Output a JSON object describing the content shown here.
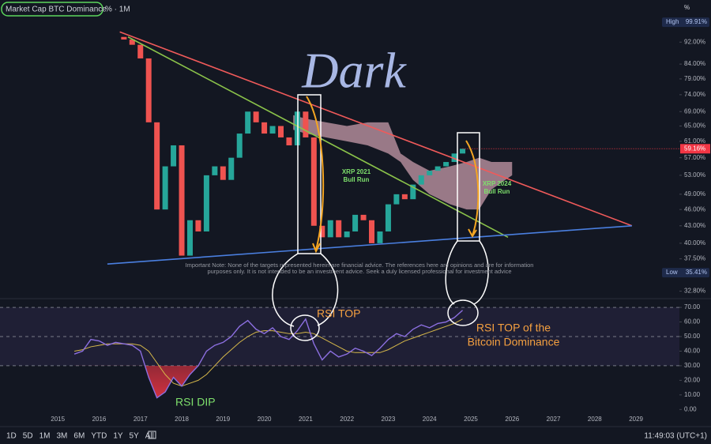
{
  "header": {
    "symbol": "Market Cap BTC Dominance",
    "interval": "% · 1M"
  },
  "chart_data": [
    {
      "type": "candlestick",
      "unit_label": "%",
      "log_scale": true,
      "grid": false,
      "up_color": "#26a69a",
      "down_color": "#ef5350",
      "xlim": [
        2013.6,
        2030.05
      ],
      "xticks": [
        2015,
        2016,
        2017,
        2018,
        2019,
        2020,
        2021,
        2022,
        2023,
        2024,
        2025,
        2026,
        2027,
        2028,
        2029
      ],
      "ylim": [
        31.8,
        102.6
      ],
      "yticks": [
        {
          "value": 92,
          "label": "92.00%"
        },
        {
          "value": 84,
          "label": "84.00%"
        },
        {
          "value": 79,
          "label": "79.00%"
        },
        {
          "value": 74,
          "label": "74.00%"
        },
        {
          "value": 69,
          "label": "69.00%"
        },
        {
          "value": 65,
          "label": "65.00%"
        },
        {
          "value": 61,
          "label": "61.00%"
        },
        {
          "value": 57,
          "label": "57.00%"
        },
        {
          "value": 53,
          "label": "53.00%"
        },
        {
          "value": 49,
          "label": "49.00%"
        },
        {
          "value": 46,
          "label": "46.00%"
        },
        {
          "value": 43,
          "label": "43.00%"
        },
        {
          "value": 40,
          "label": "40.00%"
        },
        {
          "value": 37.5,
          "label": "37.50%"
        },
        {
          "value": 32.8,
          "label": "32.80%"
        }
      ],
      "x": [
        2016.6,
        2016.8,
        2017.0,
        2017.2,
        2017.4,
        2017.6,
        2017.8,
        2018.0,
        2018.2,
        2018.4,
        2018.6,
        2018.8,
        2019.0,
        2019.2,
        2019.4,
        2019.6,
        2019.8,
        2020.0,
        2020.2,
        2020.4,
        2020.6,
        2020.8,
        2021.0,
        2021.2,
        2021.4,
        2021.6,
        2021.8,
        2022.0,
        2022.2,
        2022.4,
        2022.6,
        2022.8,
        2023.0,
        2023.2,
        2023.4,
        2023.6,
        2023.8,
        2024.0,
        2024.2,
        2024.4,
        2024.6,
        2024.8
      ],
      "open": [
        94,
        93,
        91,
        86,
        66,
        46,
        55,
        60,
        38,
        44,
        42,
        53,
        55,
        52,
        57,
        63,
        69,
        66,
        63,
        65,
        62,
        60,
        69,
        62,
        43,
        41,
        44,
        41,
        42,
        45,
        44,
        40,
        42,
        47,
        49,
        48,
        51,
        53,
        54,
        55,
        56,
        58
      ],
      "high": {
        "name": "High",
        "value": 99.91,
        "label": "99.91%"
      },
      "low": {
        "name": "Low",
        "value": 35.41,
        "label": "35.41%"
      },
      "close": [
        93,
        91,
        86,
        66,
        46,
        55,
        60,
        38,
        44,
        42,
        53,
        55,
        52,
        57,
        63,
        69,
        66,
        63,
        65,
        62,
        60,
        69,
        62,
        43,
        41,
        44,
        41,
        42,
        45,
        44,
        40,
        42,
        47,
        49,
        48,
        51,
        53,
        54,
        55,
        56,
        58,
        59.16
      ],
      "last_price": {
        "value": 59.16,
        "label": "59.16%"
      },
      "trend_lines": [
        {
          "color": "#f05a5a",
          "x": [
            2016.5,
            2028.9
          ],
          "y": [
            96,
            43
          ]
        },
        {
          "color": "#8bc34a",
          "x": [
            2016.7,
            2025.9
          ],
          "y": [
            94,
            41
          ]
        },
        {
          "color": "#4a7fe0",
          "x": [
            2016.2,
            2028.9
          ],
          "y": [
            36.7,
            43
          ]
        }
      ],
      "cloud": {
        "color": "rgba(205,160,175,0.72)",
        "x": [
          2020.7,
          2021.0,
          2021.5,
          2022.0,
          2022.5,
          2023.0,
          2023.3,
          2023.6,
          2024.0,
          2024.5,
          2024.9,
          2025.2,
          2025.5,
          2026.0
        ],
        "upper": [
          68,
          67,
          66,
          65,
          66,
          66,
          58,
          56,
          54,
          55,
          56,
          57,
          56,
          56
        ],
        "lower": [
          64,
          63,
          62,
          61,
          60,
          58,
          56,
          52,
          49,
          47,
          46,
          46,
          50,
          53
        ]
      },
      "title_overlay": "Dark",
      "annotations": [
        [
          "XRP 2021",
          "Bull Run"
        ],
        [
          "XRP 2024",
          "Bull Run"
        ]
      ],
      "note": [
        "Important Note: None of the targets represented herein are financial advice. The references here are opinions and are for information",
        "purposes only. It is not intended to be an investment advice. Seek a duly licensed professional for investment advice"
      ]
    },
    {
      "type": "line",
      "xlim": [
        2013.6,
        2030.05
      ],
      "ylim": [
        -2,
        76
      ],
      "yticks": [
        {
          "value": 70,
          "label": "70.00"
        },
        {
          "value": 60,
          "label": "60.00"
        },
        {
          "value": 50,
          "label": "50.00"
        },
        {
          "value": 40,
          "label": "40.00"
        },
        {
          "value": 30,
          "label": "30.00"
        },
        {
          "value": 20,
          "label": "20.00"
        },
        {
          "value": 10,
          "label": "10.00"
        },
        {
          "value": 0,
          "label": "0.00"
        }
      ],
      "band": [
        30,
        70
      ],
      "midline": 50,
      "band_color": "rgba(126,87,194,0.12)",
      "x": [
        2015.4,
        2015.6,
        2015.8,
        2016.0,
        2016.2,
        2016.4,
        2016.6,
        2016.8,
        2017.0,
        2017.2,
        2017.4,
        2017.6,
        2017.8,
        2018.0,
        2018.2,
        2018.4,
        2018.6,
        2018.8,
        2019.0,
        2019.2,
        2019.4,
        2019.6,
        2019.8,
        2020.0,
        2020.2,
        2020.4,
        2020.6,
        2020.8,
        2021.0,
        2021.2,
        2021.4,
        2021.6,
        2021.8,
        2022.0,
        2022.2,
        2022.4,
        2022.6,
        2022.8,
        2023.0,
        2023.2,
        2023.4,
        2023.6,
        2023.8,
        2024.0,
        2024.2,
        2024.4,
        2024.6,
        2024.8
      ],
      "series": [
        {
          "color": "#8c6fe0",
          "values": [
            38,
            40,
            48,
            47,
            44,
            46,
            45,
            44,
            40,
            22,
            8,
            12,
            22,
            16,
            24,
            30,
            40,
            44,
            46,
            50,
            57,
            61,
            55,
            52,
            56,
            50,
            48,
            54,
            62,
            45,
            34,
            40,
            36,
            38,
            42,
            40,
            37,
            42,
            48,
            52,
            50,
            55,
            58,
            56,
            59,
            60,
            63,
            68
          ]
        },
        {
          "color": "#d6b84a",
          "values": [
            40,
            41,
            43,
            44,
            45,
            45,
            45,
            45,
            44,
            40,
            32,
            24,
            18,
            16,
            18,
            20,
            24,
            30,
            36,
            41,
            46,
            50,
            53,
            54,
            54,
            53,
            52,
            52,
            53,
            52,
            49,
            46,
            43,
            40,
            39,
            39,
            39,
            39,
            41,
            44,
            47,
            49,
            51,
            53,
            55,
            57,
            59,
            62
          ]
        }
      ],
      "annotations": [
        "RSI TOP",
        [
          "RSI TOP of the",
          "Bitcoin Dominance"
        ],
        "RSI DIP"
      ]
    }
  ],
  "toolbar": {
    "ranges": [
      "1D",
      "5D",
      "1M",
      "3M",
      "6M",
      "YTD",
      "1Y",
      "5Y",
      "All"
    ],
    "clock": "11:49:03 (UTC+1)"
  }
}
